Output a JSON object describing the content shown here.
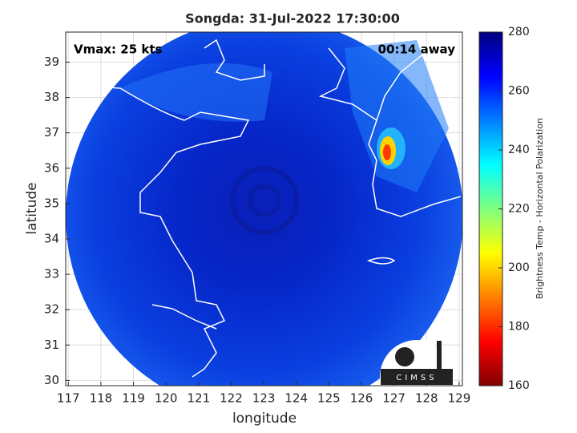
{
  "chart_data": {
    "type": "map",
    "title": "Songda: 31-Jul-2022 17:30:00",
    "annotations": [
      "Vmax: 25 kts",
      "00:14 away"
    ],
    "xlabel": "longitude",
    "ylabel": "latitude",
    "xlim": [
      116.92,
      129.1
    ],
    "ylim": [
      29.85,
      39.85
    ],
    "xticks": [
      117,
      118,
      119,
      120,
      121,
      122,
      123,
      124,
      125,
      126,
      127,
      128,
      129
    ],
    "yticks": [
      30,
      31,
      32,
      33,
      34,
      35,
      36,
      37,
      38,
      39
    ],
    "grid": true,
    "colorbar": {
      "label": "Brightness Temp - Horizontal Polarization",
      "lim": [
        160,
        280
      ],
      "ticks": [
        160,
        180,
        200,
        220,
        240,
        260,
        280
      ],
      "colormap": "jet"
    },
    "logo": "CIMSS"
  }
}
